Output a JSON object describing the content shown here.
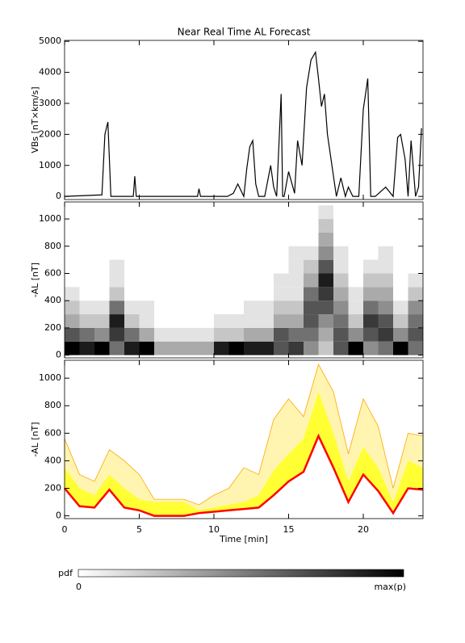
{
  "chart_data": [
    {
      "type": "line",
      "title": "Near Real Time AL Forecast",
      "ylabel": "VBs [nT×km/s]",
      "color": "#000000",
      "x": [
        0,
        2.5,
        2.7,
        2.9,
        3.1,
        4.6,
        4.7,
        4.8,
        8.9,
        9.0,
        9.1,
        10.9,
        11.3,
        11.6,
        12.0,
        12.2,
        12.4,
        12.6,
        12.8,
        13.0,
        13.4,
        13.8,
        14.0,
        14.2,
        14.5,
        14.6,
        14.7,
        15.0,
        15.4,
        15.6,
        15.9,
        16.2,
        16.5,
        16.8,
        17.0,
        17.2,
        17.4,
        17.6,
        17.9,
        18.2,
        18.5,
        18.8,
        19.0,
        19.3,
        19.7,
        20.0,
        20.3,
        20.5,
        20.8,
        21.5,
        22.0,
        22.3,
        22.5,
        22.8,
        23.0,
        23.2,
        23.5,
        23.7,
        23.9
      ],
      "values": [
        0,
        50,
        2000,
        2400,
        0,
        0,
        650,
        0,
        0,
        250,
        0,
        0,
        100,
        400,
        0,
        900,
        1600,
        1800,
        400,
        0,
        0,
        1000,
        300,
        0,
        3300,
        0,
        0,
        800,
        100,
        1800,
        1000,
        3500,
        4400,
        4650,
        3800,
        2900,
        3300,
        2000,
        1000,
        0,
        600,
        0,
        300,
        0,
        0,
        2800,
        3800,
        0,
        0,
        300,
        0,
        1900,
        2000,
        1200,
        0,
        1800,
        0,
        300,
        2200
      ],
      "xlim": [
        0,
        24
      ],
      "xticks": [
        0,
        5,
        10,
        15,
        20
      ],
      "ylim": [
        -100,
        5030
      ],
      "yticks": [
        0,
        1000,
        2000,
        3000,
        4000,
        5000
      ]
    },
    {
      "type": "heatmap",
      "ylabel": "-AL [nT]",
      "x_bins": [
        0,
        1,
        2,
        3,
        4,
        5,
        6,
        7,
        8,
        9,
        10,
        11,
        12,
        13,
        14,
        15,
        16,
        17,
        18,
        19,
        20,
        21,
        22,
        23,
        24
      ],
      "y_bins": [
        0,
        100,
        200,
        300,
        400,
        500,
        600,
        700,
        800,
        900,
        1000,
        1100
      ],
      "z": [
        [
          9,
          6,
          3,
          2,
          1,
          0,
          0,
          0,
          0,
          0,
          0
        ],
        [
          8,
          5,
          2,
          1,
          0,
          0,
          0,
          0,
          0,
          0,
          0
        ],
        [
          9,
          4,
          2,
          1,
          0,
          0,
          0,
          0,
          0,
          0,
          0
        ],
        [
          5,
          7,
          8,
          5,
          2,
          1,
          1,
          0,
          0,
          0,
          0
        ],
        [
          8,
          5,
          2,
          1,
          0,
          0,
          0,
          0,
          0,
          0,
          0
        ],
        [
          9,
          3,
          1,
          1,
          0,
          0,
          0,
          0,
          0,
          0,
          0
        ],
        [
          3,
          1,
          0,
          0,
          0,
          0,
          0,
          0,
          0,
          0,
          0
        ],
        [
          3,
          1,
          0,
          0,
          0,
          0,
          0,
          0,
          0,
          0,
          0
        ],
        [
          3,
          1,
          0,
          0,
          0,
          0,
          0,
          0,
          0,
          0,
          0
        ],
        [
          3,
          1,
          0,
          0,
          0,
          0,
          0,
          0,
          0,
          0,
          0
        ],
        [
          8,
          2,
          1,
          0,
          0,
          0,
          0,
          0,
          0,
          0,
          0
        ],
        [
          9,
          2,
          1,
          0,
          0,
          0,
          0,
          0,
          0,
          0,
          0
        ],
        [
          8,
          3,
          1,
          1,
          0,
          0,
          0,
          0,
          0,
          0,
          0
        ],
        [
          8,
          3,
          1,
          1,
          0,
          0,
          0,
          0,
          0,
          0,
          0
        ],
        [
          6,
          6,
          3,
          2,
          1,
          1,
          0,
          0,
          0,
          0,
          0
        ],
        [
          7,
          5,
          3,
          2,
          1,
          1,
          1,
          1,
          0,
          0,
          0
        ],
        [
          4,
          5,
          6,
          6,
          5,
          3,
          2,
          1,
          0,
          0,
          0
        ],
        [
          2,
          3,
          4,
          6,
          7,
          8,
          6,
          4,
          3,
          2,
          1
        ],
        [
          6,
          6,
          5,
          4,
          3,
          2,
          1,
          1,
          0,
          0,
          0
        ],
        [
          9,
          4,
          2,
          1,
          1,
          0,
          0,
          0,
          0,
          0,
          0
        ],
        [
          4,
          6,
          7,
          5,
          3,
          2,
          1,
          0,
          0,
          0,
          0
        ],
        [
          5,
          7,
          6,
          4,
          3,
          2,
          1,
          1,
          0,
          0,
          0
        ],
        [
          9,
          4,
          2,
          1,
          0,
          0,
          0,
          0,
          0,
          0,
          0
        ],
        [
          5,
          6,
          5,
          4,
          2,
          1,
          0,
          0,
          0,
          0,
          0
        ]
      ],
      "zlim": [
        0,
        9
      ],
      "colorbar": {
        "label": "pdf",
        "ticks": [
          "0",
          "max(p)"
        ]
      },
      "xlim": [
        0,
        24
      ],
      "xticks": [
        0,
        5,
        10,
        15,
        20
      ],
      "ylim": [
        -20,
        1125
      ],
      "yticks": [
        0,
        200,
        400,
        600,
        800,
        1000
      ]
    },
    {
      "type": "band",
      "ylabel": "-AL [nT]",
      "xlabel": "Time [min]",
      "band_color": "#fff5b0",
      "x": [
        0,
        1,
        2,
        3,
        4,
        5,
        6,
        7,
        8,
        9,
        10,
        11,
        12,
        13,
        14,
        15,
        16,
        17,
        18,
        19,
        20,
        21,
        22,
        23,
        24
      ],
      "series": [
        {
          "color": "#ff0000",
          "values": [
            200,
            70,
            60,
            190,
            60,
            40,
            0,
            0,
            0,
            20,
            30,
            40,
            50,
            60,
            150,
            250,
            320,
            580,
            350,
            100,
            300,
            180,
            20,
            200,
            190
          ]
        },
        {
          "color": "#ffff33",
          "values": [
            350,
            200,
            150,
            300,
            200,
            120,
            100,
            100,
            100,
            40,
            60,
            80,
            100,
            150,
            330,
            450,
            560,
            900,
            600,
            250,
            500,
            350,
            100,
            400,
            350
          ]
        },
        {
          "color": "#ffa500",
          "values": [
            560,
            300,
            250,
            480,
            400,
            300,
            120,
            120,
            120,
            80,
            150,
            200,
            350,
            300,
            700,
            850,
            720,
            1100,
            900,
            450,
            850,
            650,
            200,
            600,
            580
          ]
        }
      ],
      "xlim": [
        0,
        24
      ],
      "xticks": [
        0,
        5,
        10,
        15,
        20
      ],
      "ylim": [
        -20,
        1130
      ],
      "yticks": [
        0,
        200,
        400,
        600,
        800,
        1000
      ]
    }
  ]
}
